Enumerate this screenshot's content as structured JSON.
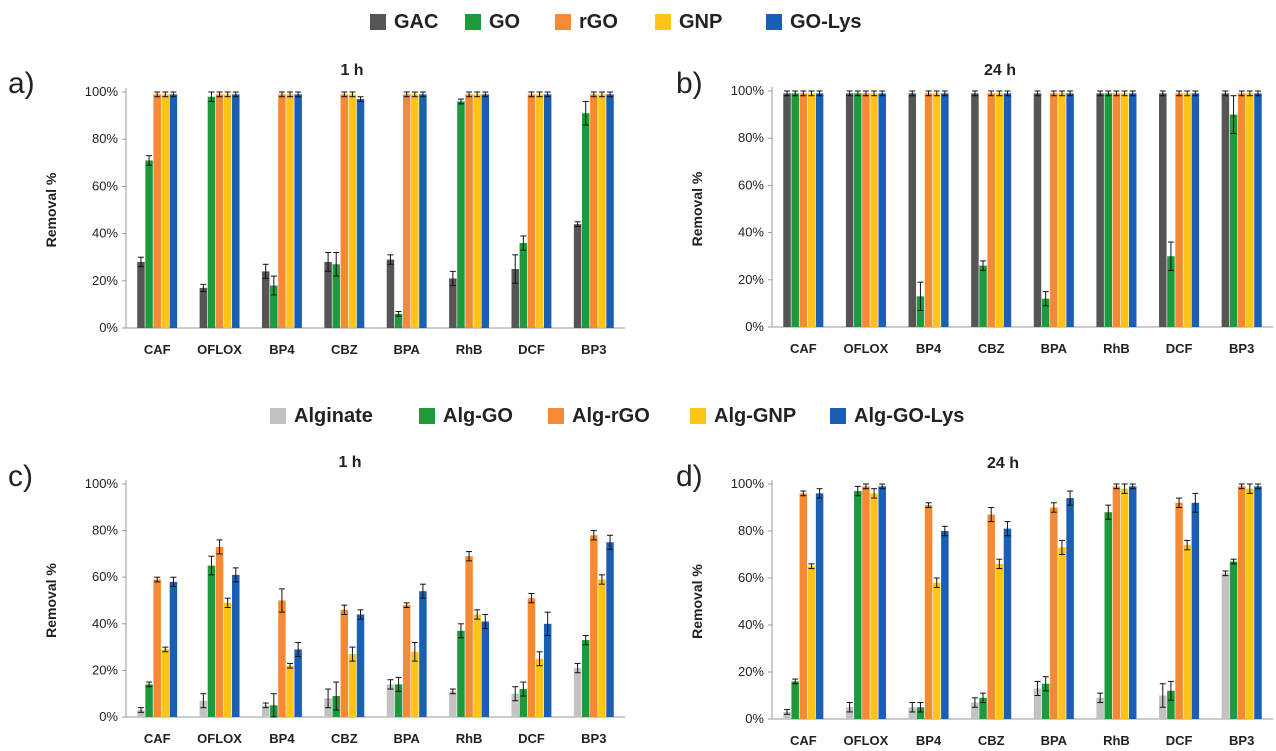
{
  "chart_data": [
    {
      "type": "bar",
      "panel_label": "a)",
      "title": "1 h",
      "ylabel": "Removal %",
      "ylim": [
        0,
        100
      ],
      "yticks": [
        "0%",
        "20%",
        "40%",
        "60%",
        "80%",
        "100%"
      ],
      "categories": [
        "CAF",
        "OFLOX",
        "BP4",
        "CBZ",
        "BPA",
        "RhB",
        "DCF",
        "BP3"
      ],
      "series": [
        {
          "name": "GAC",
          "color": "#555555",
          "values": [
            28,
            17,
            24,
            28,
            29,
            21,
            25,
            44
          ],
          "errors": [
            2,
            1.5,
            3,
            4,
            2,
            3,
            6,
            1
          ]
        },
        {
          "name": "GO",
          "color": "#1e9a3c",
          "values": [
            71,
            98,
            18,
            27,
            6,
            96,
            36,
            91
          ],
          "errors": [
            2,
            2,
            4,
            5,
            1,
            1,
            3,
            5
          ]
        },
        {
          "name": "rGO",
          "color": "#f58a34",
          "values": [
            99,
            99,
            99,
            99,
            99,
            99,
            99,
            99
          ],
          "errors": [
            1,
            1,
            1,
            1,
            1,
            1,
            1,
            1
          ]
        },
        {
          "name": "GNP",
          "color": "#ffc414",
          "values": [
            99,
            99,
            99,
            99,
            99,
            99,
            99,
            99
          ],
          "errors": [
            1,
            1,
            1,
            1,
            1,
            1,
            1,
            1
          ]
        },
        {
          "name": "GO-Lys",
          "color": "#1a5fb4",
          "values": [
            99,
            99,
            99,
            97,
            99,
            99,
            99,
            99
          ],
          "errors": [
            1,
            1,
            1,
            1,
            1,
            1,
            1,
            1
          ]
        }
      ],
      "grid": false
    },
    {
      "type": "bar",
      "panel_label": "b)",
      "title": "24 h",
      "ylabel": "Removal %",
      "ylim": [
        0,
        100
      ],
      "yticks": [
        "0%",
        "20%",
        "40%",
        "60%",
        "80%",
        "100%"
      ],
      "categories": [
        "CAF",
        "OFLOX",
        "BP4",
        "CBZ",
        "BPA",
        "RhB",
        "DCF",
        "BP3"
      ],
      "series": [
        {
          "name": "GAC",
          "color": "#555555",
          "values": [
            99,
            99,
            99,
            99,
            99,
            99,
            99,
            99
          ],
          "errors": [
            1,
            1,
            1,
            1,
            1,
            1,
            1,
            1
          ]
        },
        {
          "name": "GO",
          "color": "#1e9a3c",
          "values": [
            99,
            99,
            13,
            26,
            12,
            99,
            30,
            90
          ],
          "errors": [
            1,
            1,
            6,
            2,
            3,
            1,
            6,
            8
          ]
        },
        {
          "name": "rGO",
          "color": "#f58a34",
          "values": [
            99,
            99,
            99,
            99,
            99,
            99,
            99,
            99
          ],
          "errors": [
            1,
            1,
            1,
            1,
            1,
            1,
            1,
            1
          ]
        },
        {
          "name": "GNP",
          "color": "#ffc414",
          "values": [
            99,
            99,
            99,
            99,
            99,
            99,
            99,
            99
          ],
          "errors": [
            1,
            1,
            1,
            1,
            1,
            1,
            1,
            1
          ]
        },
        {
          "name": "GO-Lys",
          "color": "#1a5fb4",
          "values": [
            99,
            99,
            99,
            99,
            99,
            99,
            99,
            99
          ],
          "errors": [
            1,
            1,
            1,
            1,
            1,
            1,
            1,
            1
          ]
        }
      ],
      "grid": false
    },
    {
      "type": "bar",
      "panel_label": "c)",
      "title": "1 h",
      "ylabel": "Removal %",
      "ylim": [
        0,
        100
      ],
      "yticks": [
        "0%",
        "20%",
        "40%",
        "60%",
        "80%",
        "100%"
      ],
      "categories": [
        "CAF",
        "OFLOX",
        "BP4",
        "CBZ",
        "BPA",
        "RhB",
        "DCF",
        "BP3"
      ],
      "series": [
        {
          "name": "Alginate",
          "color": "#c2c2c2",
          "values": [
            3,
            7,
            5,
            8,
            14,
            11,
            10,
            21
          ],
          "errors": [
            1,
            3,
            1,
            4,
            2,
            1,
            3,
            2
          ]
        },
        {
          "name": "Alg-GO",
          "color": "#1e9a3c",
          "values": [
            14,
            65,
            5,
            9,
            14,
            37,
            12,
            33
          ],
          "errors": [
            1,
            4,
            5,
            6,
            3,
            3,
            3,
            2
          ]
        },
        {
          "name": "Alg-rGO",
          "color": "#f58a34",
          "values": [
            59,
            73,
            50,
            46,
            48,
            69,
            51,
            78
          ],
          "errors": [
            1,
            3,
            5,
            2,
            1,
            2,
            2,
            2
          ]
        },
        {
          "name": "Alg-GNP",
          "color": "#ffc414",
          "values": [
            29,
            49,
            22,
            27,
            28,
            44,
            25,
            59
          ],
          "errors": [
            1,
            2,
            1,
            3,
            4,
            2,
            3,
            2
          ]
        },
        {
          "name": "Alg-GO-Lys",
          "color": "#1a5fb4",
          "values": [
            58,
            61,
            29,
            44,
            54,
            41,
            40,
            75
          ],
          "errors": [
            2,
            3,
            3,
            2,
            3,
            3,
            5,
            3
          ]
        }
      ],
      "grid": false
    },
    {
      "type": "bar",
      "panel_label": "d)",
      "title": "24 h",
      "ylabel": "Removal %",
      "ylim": [
        0,
        100
      ],
      "yticks": [
        "0%",
        "20%",
        "40%",
        "60%",
        "80%",
        "100%"
      ],
      "categories": [
        "CAF",
        "OFLOX",
        "BP4",
        "CBZ",
        "BPA",
        "RhB",
        "DCF",
        "BP3"
      ],
      "series": [
        {
          "name": "Alginate",
          "color": "#c2c2c2",
          "values": [
            3,
            5,
            5,
            7,
            13,
            9,
            10,
            62
          ],
          "errors": [
            1,
            2,
            2,
            2,
            3,
            2,
            5,
            1
          ]
        },
        {
          "name": "Alg-GO",
          "color": "#1e9a3c",
          "values": [
            16,
            97,
            5,
            9,
            15,
            88,
            12,
            67
          ],
          "errors": [
            1,
            2,
            2,
            2,
            3,
            3,
            4,
            1
          ]
        },
        {
          "name": "Alg-rGO",
          "color": "#f58a34",
          "values": [
            96,
            99,
            91,
            87,
            90,
            99,
            92,
            99
          ],
          "errors": [
            1,
            1,
            1,
            3,
            2,
            1,
            2,
            1
          ]
        },
        {
          "name": "Alg-GNP",
          "color": "#ffc414",
          "values": [
            65,
            96,
            58,
            66,
            73,
            98,
            74,
            98
          ],
          "errors": [
            1,
            2,
            2,
            2,
            3,
            2,
            2,
            2
          ]
        },
        {
          "name": "Alg-GO-Lys",
          "color": "#1a5fb4",
          "values": [
            96,
            99,
            80,
            81,
            94,
            99,
            92,
            99
          ],
          "errors": [
            2,
            1,
            2,
            3,
            3,
            1,
            4,
            1
          ]
        }
      ],
      "grid": false
    }
  ]
}
